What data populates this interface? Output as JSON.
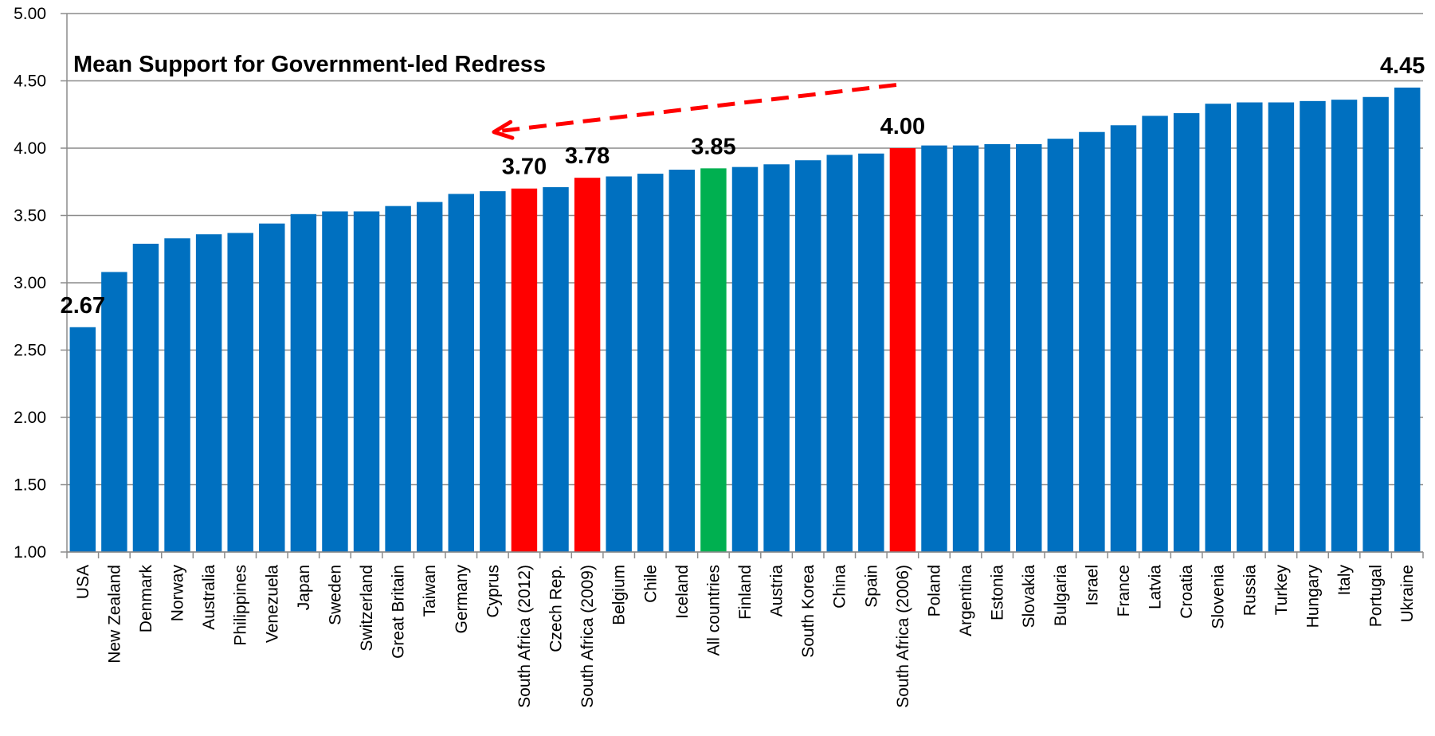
{
  "chart_data": {
    "type": "bar",
    "title": "Mean Support for Government-led Redress",
    "xlabel": "",
    "ylabel": "",
    "ylim": [
      1.0,
      5.0
    ],
    "yticks": [
      "1.00",
      "1.50",
      "2.00",
      "2.50",
      "3.00",
      "3.50",
      "4.00",
      "4.50",
      "5.00"
    ],
    "grid": true,
    "categories": [
      "USA",
      "New Zealand",
      "Denmark",
      "Norway",
      "Australia",
      "Philippines",
      "Venezuela",
      "Japan",
      "Sweden",
      "Switzerland",
      "Great Britain",
      "Taiwan",
      "Germany",
      "Cyprus",
      "South Africa (2012)",
      "Czech Rep.",
      "South Africa (2009)",
      "Belgium",
      "Chile",
      "Iceland",
      "All countries",
      "Finland",
      "Austria",
      "South Korea",
      "China",
      "Spain",
      "South Africa (2006)",
      "Poland",
      "Argentina",
      "Estonia",
      "Slovakia",
      "Bulgaria",
      "Israel",
      "France",
      "Latvia",
      "Croatia",
      "Slovenia",
      "Russia",
      "Turkey",
      "Hungary",
      "Italy",
      "Portugal",
      "Ukraine"
    ],
    "values": [
      2.67,
      3.08,
      3.29,
      3.33,
      3.36,
      3.37,
      3.44,
      3.51,
      3.53,
      3.53,
      3.57,
      3.6,
      3.66,
      3.68,
      3.7,
      3.71,
      3.78,
      3.79,
      3.81,
      3.84,
      3.85,
      3.86,
      3.88,
      3.91,
      3.95,
      3.96,
      4.0,
      4.02,
      4.02,
      4.03,
      4.03,
      4.07,
      4.12,
      4.17,
      4.24,
      4.26,
      4.33,
      4.34,
      4.34,
      4.35,
      4.36,
      4.38,
      4.45
    ],
    "bar_colors": {
      "default": "#0070C0",
      "highlight_red": "#FF0000",
      "highlight_green": "#00B050"
    },
    "red_bars": [
      "South Africa (2012)",
      "South Africa (2009)",
      "South Africa (2006)"
    ],
    "green_bars": [
      "All countries"
    ],
    "data_labels": [
      {
        "category": "USA",
        "text": "2.67"
      },
      {
        "category": "South Africa (2012)",
        "text": "3.70"
      },
      {
        "category": "South Africa (2009)",
        "text": "3.78"
      },
      {
        "category": "All countries",
        "text": "3.85"
      },
      {
        "category": "South Africa (2006)",
        "text": "4.00"
      },
      {
        "category": "Ukraine",
        "text": "4.45"
      }
    ],
    "annotation_arrow": {
      "color": "#FF0000",
      "style": "dashed",
      "from_category": "South Africa (2006)",
      "to_category": "South Africa (2012)"
    }
  }
}
